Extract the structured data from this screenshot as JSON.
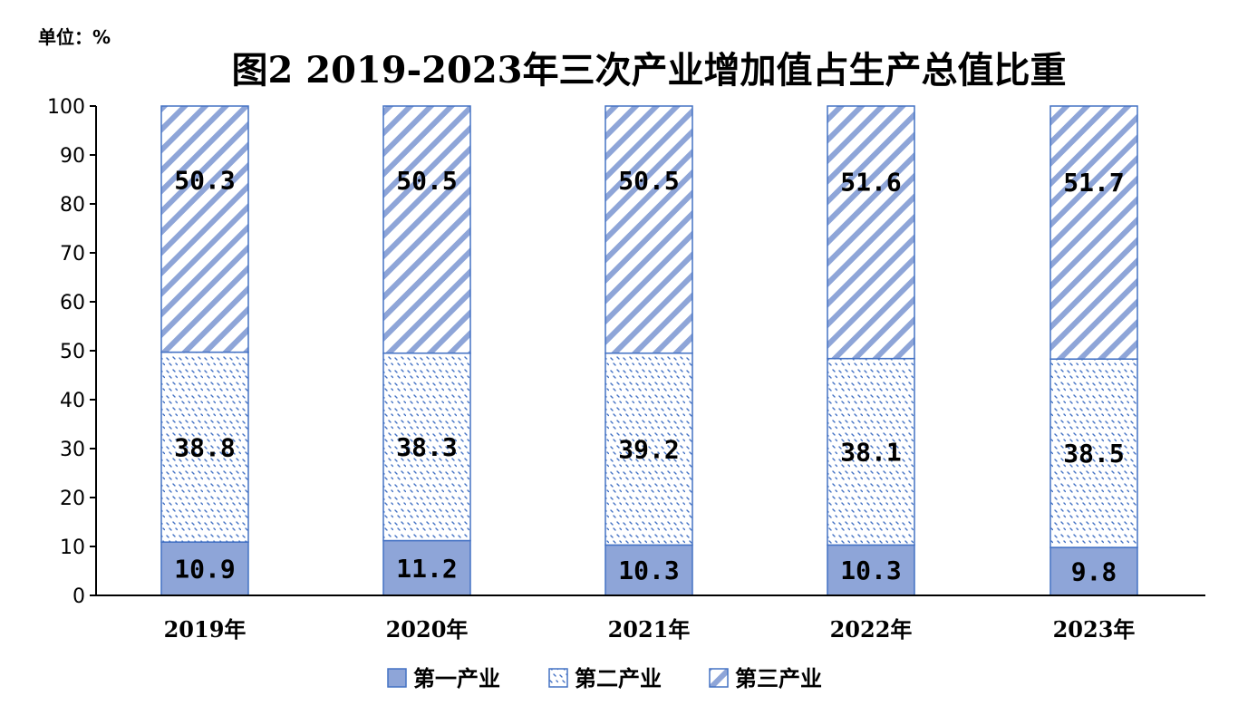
{
  "unit_label": "单位：%",
  "colors": {
    "primary_fill": "#8EA5D8",
    "series_stroke": "#4472C4",
    "axis": "#000000"
  },
  "chart_data": {
    "type": "bar",
    "stacked": true,
    "title": "图2 2019-2023年三次产业增加值占生产总值比重",
    "categories": [
      "2019年",
      "2020年",
      "2021年",
      "2022年",
      "2023年"
    ],
    "series": [
      {
        "name": "第一产业",
        "values": [
          10.9,
          11.2,
          10.3,
          10.3,
          9.8
        ],
        "labels": [
          "10.9",
          "11.2",
          "10.3",
          "10.3",
          "9.8"
        ]
      },
      {
        "name": "第二产业",
        "values": [
          38.8,
          38.3,
          39.2,
          38.1,
          38.5
        ],
        "labels": [
          "38.8",
          "38.3",
          "39.2",
          "38.1",
          "38.5"
        ]
      },
      {
        "name": "第三产业",
        "values": [
          50.3,
          50.5,
          50.5,
          51.6,
          51.7
        ],
        "labels": [
          "50.3",
          "50.5",
          "50.5",
          "51.6",
          "51.7"
        ]
      }
    ],
    "ylim": [
      0,
      100
    ],
    "yticks": [
      "0",
      "10",
      "20",
      "30",
      "40",
      "50",
      "60",
      "70",
      "80",
      "90",
      "100"
    ],
    "xlabel": "",
    "ylabel": "",
    "grid": false,
    "legend_position": "bottom"
  }
}
